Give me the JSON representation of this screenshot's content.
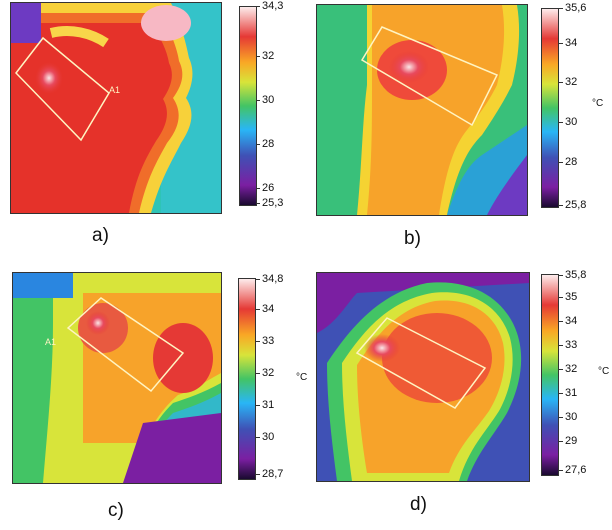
{
  "panels": [
    {
      "label": "a)",
      "max": "34,3",
      "min": "25,3",
      "unit": "",
      "ticks": [
        "32",
        "30",
        "28",
        "26"
      ],
      "roi_label": "A1"
    },
    {
      "label": "b)",
      "max": "35,6",
      "min": "25,8",
      "unit": "°C",
      "ticks": [
        "34",
        "32",
        "30",
        "28"
      ],
      "roi_label": ""
    },
    {
      "label": "c)",
      "max": "34,8",
      "min": "28,7",
      "unit": "°C",
      "ticks": [
        "34",
        "33",
        "32",
        "31",
        "30"
      ],
      "roi_label": "A1"
    },
    {
      "label": "d)",
      "max": "35,8",
      "min": "27,6",
      "unit": "°C",
      "ticks": [
        "35",
        "34",
        "33",
        "32",
        "31",
        "30",
        "29"
      ],
      "roi_label": ""
    }
  ]
}
